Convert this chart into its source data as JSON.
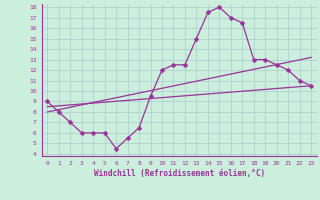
{
  "xlabel": "Windchill (Refroidissement éolien,°C)",
  "bg_color": "#cceedd",
  "grid_color": "#aacccc",
  "line_color": "#993399",
  "axis_color": "#993399",
  "xlim": [
    -0.5,
    23.5
  ],
  "ylim": [
    3.8,
    18.3
  ],
  "xticks": [
    0,
    1,
    2,
    3,
    4,
    5,
    6,
    7,
    8,
    9,
    10,
    11,
    12,
    13,
    14,
    15,
    16,
    17,
    18,
    19,
    20,
    21,
    22,
    23
  ],
  "yticks": [
    4,
    5,
    6,
    7,
    8,
    9,
    10,
    11,
    12,
    13,
    14,
    15,
    16,
    17,
    18
  ],
  "line1_x": [
    0,
    1,
    2,
    3,
    4,
    5,
    6,
    7,
    8,
    9,
    10,
    11,
    12,
    13,
    14,
    15,
    16,
    17,
    18,
    19,
    20,
    21,
    22,
    23
  ],
  "line1_y": [
    9.0,
    8.0,
    7.0,
    6.0,
    6.0,
    6.0,
    4.5,
    5.5,
    6.5,
    9.5,
    12.0,
    12.5,
    12.5,
    15.0,
    17.5,
    18.0,
    17.0,
    16.5,
    13.0,
    13.0,
    12.5,
    12.0,
    11.0,
    10.5
  ],
  "line2_x": [
    0,
    23
  ],
  "line2_y": [
    8.5,
    10.5
  ],
  "line3_x": [
    0,
    23
  ],
  "line3_y": [
    8.0,
    13.2
  ],
  "markersize": 2.5,
  "linewidth": 0.9,
  "tick_fontsize": 4.5,
  "xlabel_fontsize": 5.5
}
